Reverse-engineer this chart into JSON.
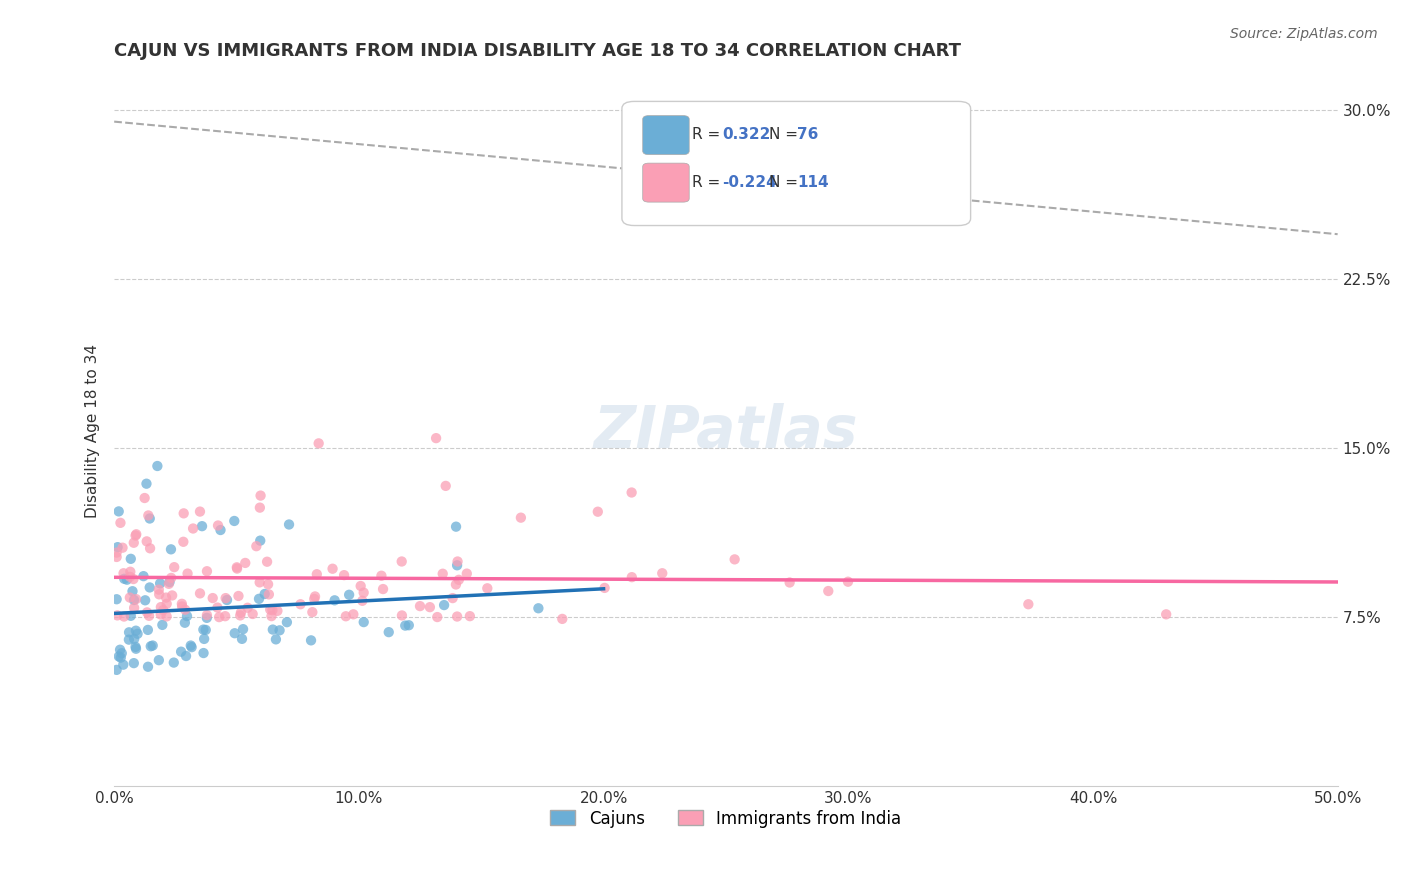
{
  "title": "CAJUN VS IMMIGRANTS FROM INDIA DISABILITY AGE 18 TO 34 CORRELATION CHART",
  "source_text": "Source: ZipAtlas.com",
  "xlabel": "",
  "ylabel": "Disability Age 18 to 34",
  "xlim": [
    0.0,
    0.5
  ],
  "ylim": [
    0.0,
    0.315
  ],
  "xticks": [
    0.0,
    0.1,
    0.2,
    0.3,
    0.4,
    0.5
  ],
  "xtick_labels": [
    "0.0%",
    "10.0%",
    "20.0%",
    "30.0%",
    "40.0%",
    "50.0%"
  ],
  "yticks": [
    0.075,
    0.15,
    0.225,
    0.3
  ],
  "ytick_labels": [
    "7.5%",
    "15.0%",
    "22.5%",
    "30.0%"
  ],
  "cajun_color": "#6baed6",
  "india_color": "#fa9fb5",
  "cajun_line_color": "#2171b5",
  "india_line_color": "#f768a1",
  "R_cajun": 0.322,
  "N_cajun": 76,
  "R_india": -0.224,
  "N_india": 114,
  "legend_label_cajun": "Cajuns",
  "legend_label_india": "Immigrants from India",
  "watermark": "ZIPatlas",
  "background_color": "#ffffff",
  "grid_color": "#cccccc",
  "cajun_seed": 42,
  "india_seed": 99,
  "title_fontsize": 13,
  "axis_label_fontsize": 11,
  "tick_fontsize": 11,
  "legend_fontsize": 11,
  "source_fontsize": 10
}
